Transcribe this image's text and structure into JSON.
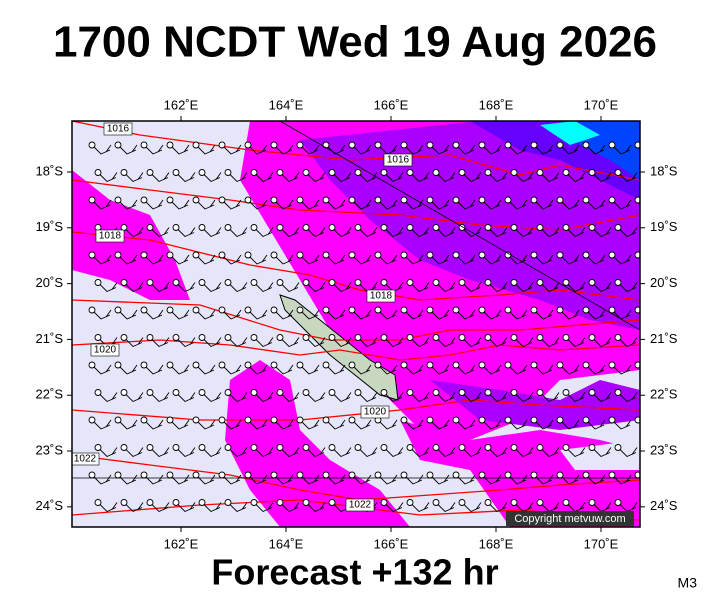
{
  "header": {
    "title": "1700 NCDT Wed 19 Aug 2026"
  },
  "map": {
    "lon_labels": [
      "162˚E",
      "164˚E",
      "166˚E",
      "168˚E",
      "170˚E"
    ],
    "lat_labels": [
      "18˚S",
      "19˚S",
      "20˚S",
      "21˚S",
      "22˚S",
      "23˚S",
      "24˚S"
    ],
    "isobar_labels": [
      "1016",
      "1016",
      "1018",
      "1018",
      "1020",
      "1020",
      "1022",
      "1022"
    ],
    "copyright": "Copyright metvuw.com"
  },
  "footer": {
    "forecast": "Forecast +132 hr",
    "model": "M3"
  }
}
